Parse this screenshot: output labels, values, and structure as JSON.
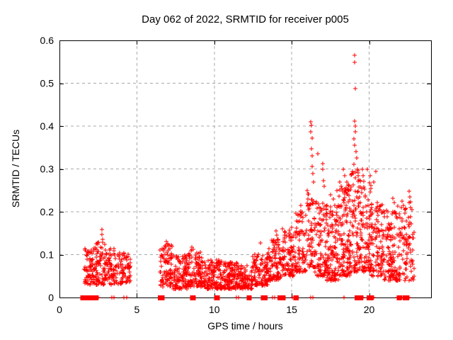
{
  "chart_data": {
    "type": "scatter",
    "title": "Day 062 of 2022, SRMTID for receiver p005",
    "xlabel": "GPS time / hours",
    "ylabel": "SRMTID / TECUs",
    "xlim": [
      0,
      24
    ],
    "ylim": [
      0,
      0.6
    ],
    "xticks": [
      0,
      5,
      10,
      15,
      20
    ],
    "yticks": [
      0,
      0.1,
      0.2,
      0.3,
      0.4,
      0.5,
      0.6
    ],
    "grid": {
      "show": true,
      "style": "dashed",
      "color": "#a8a8a8"
    },
    "marker": {
      "shape": "plus",
      "color": "#ff0000",
      "size": 7
    },
    "border_color": "#000000",
    "legend": "none",
    "sampling_note": "Dense point cloud estimated visually; clusters give x-range, point count and y-range (skew biases points toward ymin). Outliers are individually read points. zero_runs/zero_points mark data at y=0.",
    "random_seed": 62005,
    "clusters": [
      {
        "x0": 1.6,
        "x1": 2.15,
        "n": 65,
        "ymin": 0.03,
        "ymax": 0.125,
        "skew": 1.6
      },
      {
        "x0": 2.15,
        "x1": 3.05,
        "n": 95,
        "ymin": 0.03,
        "ymax": 0.13,
        "skew": 1.7
      },
      {
        "x0": 3.05,
        "x1": 4.05,
        "n": 85,
        "ymin": 0.03,
        "ymax": 0.115,
        "skew": 1.6
      },
      {
        "x0": 4.05,
        "x1": 4.6,
        "n": 50,
        "ymin": 0.035,
        "ymax": 0.105,
        "skew": 1.5
      },
      {
        "x0": 6.5,
        "x1": 7.35,
        "n": 95,
        "ymin": 0.025,
        "ymax": 0.125,
        "skew": 1.6
      },
      {
        "x0": 7.35,
        "x1": 8.25,
        "n": 105,
        "ymin": 0.02,
        "ymax": 0.1,
        "skew": 1.5
      },
      {
        "x0": 8.25,
        "x1": 9.35,
        "n": 115,
        "ymin": 0.025,
        "ymax": 0.112,
        "skew": 1.7
      },
      {
        "x0": 9.35,
        "x1": 10.55,
        "n": 125,
        "ymin": 0.02,
        "ymax": 0.09,
        "skew": 1.5
      },
      {
        "x0": 10.55,
        "x1": 11.65,
        "n": 125,
        "ymin": 0.02,
        "ymax": 0.082,
        "skew": 1.4
      },
      {
        "x0": 11.65,
        "x1": 12.45,
        "n": 85,
        "ymin": 0.02,
        "ymax": 0.078,
        "skew": 1.4
      },
      {
        "x0": 12.45,
        "x1": 13.45,
        "n": 100,
        "ymin": 0.028,
        "ymax": 0.105,
        "skew": 1.5
      },
      {
        "x0": 13.45,
        "x1": 14.35,
        "n": 95,
        "ymin": 0.04,
        "ymax": 0.135,
        "skew": 1.5
      },
      {
        "x0": 14.35,
        "x1": 15.15,
        "n": 85,
        "ymin": 0.05,
        "ymax": 0.165,
        "skew": 1.5
      },
      {
        "x0": 15.15,
        "x1": 15.95,
        "n": 85,
        "ymin": 0.06,
        "ymax": 0.205,
        "skew": 1.6
      },
      {
        "x0": 15.95,
        "x1": 16.5,
        "n": 65,
        "ymin": 0.07,
        "ymax": 0.245,
        "skew": 1.7
      },
      {
        "x0": 16.5,
        "x1": 17.25,
        "n": 90,
        "ymin": 0.05,
        "ymax": 0.225,
        "skew": 1.6
      },
      {
        "x0": 17.25,
        "x1": 18.05,
        "n": 125,
        "ymin": 0.04,
        "ymax": 0.215,
        "skew": 1.5
      },
      {
        "x0": 18.05,
        "x1": 18.8,
        "n": 125,
        "ymin": 0.05,
        "ymax": 0.265,
        "skew": 1.6
      },
      {
        "x0": 18.8,
        "x1": 19.4,
        "n": 85,
        "ymin": 0.06,
        "ymax": 0.31,
        "skew": 1.5
      },
      {
        "x0": 19.4,
        "x1": 20.15,
        "n": 105,
        "ymin": 0.06,
        "ymax": 0.275,
        "skew": 1.6
      },
      {
        "x0": 20.15,
        "x1": 20.95,
        "n": 105,
        "ymin": 0.05,
        "ymax": 0.225,
        "skew": 1.5
      },
      {
        "x0": 20.95,
        "x1": 21.85,
        "n": 115,
        "ymin": 0.04,
        "ymax": 0.205,
        "skew": 1.5
      },
      {
        "x0": 21.85,
        "x1": 22.9,
        "n": 105,
        "ymin": 0.04,
        "ymax": 0.225,
        "skew": 1.5
      }
    ],
    "outliers": [
      [
        2.72,
        0.158
      ],
      [
        2.74,
        0.147
      ],
      [
        2.77,
        0.136
      ],
      [
        6.92,
        0.131
      ],
      [
        7.0,
        0.126
      ],
      [
        8.55,
        0.118
      ],
      [
        8.65,
        0.112
      ],
      [
        13.0,
        0.128
      ],
      [
        14.0,
        0.155
      ],
      [
        14.05,
        0.145
      ],
      [
        15.6,
        0.215
      ],
      [
        16.0,
        0.25
      ],
      [
        16.05,
        0.23
      ],
      [
        16.22,
        0.41
      ],
      [
        16.27,
        0.402
      ],
      [
        16.24,
        0.386
      ],
      [
        16.3,
        0.372
      ],
      [
        16.26,
        0.347
      ],
      [
        16.32,
        0.331
      ],
      [
        16.3,
        0.305
      ],
      [
        16.36,
        0.29
      ],
      [
        16.4,
        0.27
      ],
      [
        16.7,
        0.335
      ],
      [
        17.0,
        0.312
      ],
      [
        17.02,
        0.3
      ],
      [
        17.05,
        0.272
      ],
      [
        17.1,
        0.26
      ],
      [
        17.5,
        0.24
      ],
      [
        17.7,
        0.23
      ],
      [
        17.9,
        0.25
      ],
      [
        18.1,
        0.27
      ],
      [
        18.2,
        0.26
      ],
      [
        18.35,
        0.3
      ],
      [
        18.4,
        0.285
      ],
      [
        18.55,
        0.27
      ],
      [
        19.05,
        0.565
      ],
      [
        19.08,
        0.549
      ],
      [
        19.1,
        0.488
      ],
      [
        19.05,
        0.412
      ],
      [
        19.1,
        0.4
      ],
      [
        19.12,
        0.386
      ],
      [
        19.02,
        0.37
      ],
      [
        19.08,
        0.355
      ],
      [
        19.15,
        0.34
      ],
      [
        19.2,
        0.325
      ],
      [
        19.0,
        0.31
      ],
      [
        19.25,
        0.3
      ],
      [
        19.55,
        0.3
      ],
      [
        19.6,
        0.285
      ],
      [
        19.9,
        0.3
      ],
      [
        20.05,
        0.285
      ],
      [
        20.3,
        0.27
      ],
      [
        20.45,
        0.295
      ],
      [
        21.55,
        0.232
      ],
      [
        21.6,
        0.222
      ],
      [
        22.1,
        0.21
      ],
      [
        22.58,
        0.222
      ],
      [
        22.6,
        0.248
      ],
      [
        22.62,
        0.235
      ]
    ],
    "zero_runs": [
      [
        1.45,
        1.8
      ],
      [
        1.98,
        2.42
      ],
      [
        6.45,
        6.7
      ],
      [
        8.52,
        8.7
      ],
      [
        10.08,
        10.26
      ],
      [
        12.18,
        12.32
      ],
      [
        13.1,
        13.34
      ],
      [
        14.18,
        14.34
      ],
      [
        14.4,
        14.52
      ],
      [
        15.2,
        15.36
      ],
      [
        19.16,
        19.34
      ],
      [
        19.4,
        19.52
      ],
      [
        19.92,
        20.18
      ],
      [
        21.88,
        22.02
      ],
      [
        22.26,
        22.5
      ]
    ],
    "zero_points": [
      2.5,
      3.36,
      3.5,
      4.18,
      4.32,
      11.42,
      11.56,
      13.76,
      13.88,
      15.02,
      16.22,
      16.35,
      18.37,
      19.62,
      20.3,
      21.8,
      22.12,
      22.56
    ]
  }
}
